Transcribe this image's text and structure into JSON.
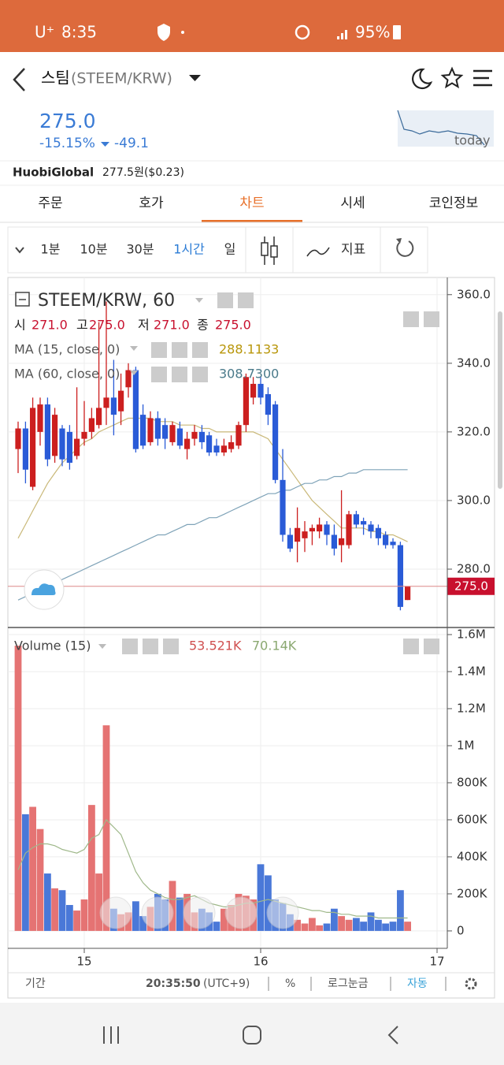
{
  "status": {
    "carrier": "U⁺",
    "time": "8:35",
    "battery": "95%"
  },
  "header": {
    "title": "스팀",
    "pair": "(STEEM/KRW)"
  },
  "price": {
    "last": "275.0",
    "change_pct": "-15.15%",
    "change": "-49.1",
    "spark_label": "today"
  },
  "exchange": {
    "name": "HuobiGlobal",
    "price": "277.5원($0.23)"
  },
  "tabs": [
    "주문",
    "호가",
    "차트",
    "시세",
    "코인정보"
  ],
  "active_tab": 2,
  "toolbar": {
    "intervals": [
      "1분",
      "10분",
      "30분",
      "1시간",
      "일"
    ],
    "active_interval": 3,
    "indicator": "지표"
  },
  "footer": {
    "period": "기간",
    "time": "20:35:50",
    "timezone": "(UTC+9)",
    "percent": "%",
    "log": "로그눈금",
    "auto": "자동"
  },
  "chart_data": [
    {
      "type": "candlestick",
      "title": "STEEM/KRW, 60",
      "last_ohlc": {
        "names": [
          "시",
          "고",
          "저",
          "종"
        ],
        "values": [
          271,
          275,
          271,
          275
        ],
        "value_labels": [
          "271.0",
          "275.0",
          "271.0",
          "275.0"
        ]
      },
      "up_color": "#cc1f1f",
      "down_color": "#2a5bd7",
      "x": [
        14.625,
        14.667,
        14.708,
        14.75,
        14.792,
        14.833,
        14.875,
        14.917,
        14.958,
        15.0,
        15.042,
        15.083,
        15.125,
        15.167,
        15.208,
        15.25,
        15.292,
        15.333,
        15.375,
        15.417,
        15.458,
        15.5,
        15.542,
        15.583,
        15.625,
        15.667,
        15.708,
        15.75,
        15.792,
        15.833,
        15.875,
        15.917,
        15.958,
        16.0,
        16.042,
        16.083,
        16.125,
        16.167,
        16.208,
        16.25,
        16.292,
        16.333,
        16.375,
        16.417,
        16.458,
        16.5,
        16.542,
        16.583,
        16.625,
        16.667,
        16.708,
        16.75,
        16.792,
        16.833
      ],
      "ohlc": [
        [
          315,
          323,
          308,
          321
        ],
        [
          321,
          323,
          305,
          309
        ],
        [
          304,
          330,
          303,
          327
        ],
        [
          320,
          330,
          316,
          328
        ],
        [
          328,
          330,
          310,
          312
        ],
        [
          313,
          327,
          311,
          325
        ],
        [
          321,
          322,
          310,
          312
        ],
        [
          320,
          322,
          309,
          311
        ],
        [
          313,
          333,
          312,
          318
        ],
        [
          318,
          329,
          316,
          320
        ],
        [
          320,
          327,
          318,
          324
        ],
        [
          322,
          352,
          321,
          327
        ],
        [
          327,
          358,
          322,
          330
        ],
        [
          330,
          341,
          319,
          325
        ],
        [
          326,
          337,
          322,
          332
        ],
        [
          333,
          340,
          330,
          338
        ],
        [
          338,
          339,
          314,
          315
        ],
        [
          325,
          328,
          315,
          316
        ],
        [
          317,
          326,
          316,
          324
        ],
        [
          324,
          326,
          316,
          318
        ],
        [
          322,
          324,
          315,
          318
        ],
        [
          317,
          323,
          316,
          322
        ],
        [
          321,
          323,
          315,
          316
        ],
        [
          315,
          320,
          312,
          318
        ],
        [
          318,
          322,
          316,
          320
        ],
        [
          320,
          322,
          315,
          317
        ],
        [
          319,
          320,
          313,
          314
        ],
        [
          316,
          318,
          313,
          314
        ],
        [
          314,
          318,
          313,
          316
        ],
        [
          315,
          319,
          314,
          317
        ],
        [
          316,
          323,
          315,
          322
        ],
        [
          322,
          337,
          320,
          336
        ],
        [
          330,
          336,
          328,
          334
        ],
        [
          334,
          336,
          328,
          330
        ],
        [
          331,
          333,
          322,
          325
        ],
        [
          328,
          329,
          305,
          306
        ],
        [
          306,
          315,
          288,
          290
        ],
        [
          290,
          292,
          285,
          286
        ],
        [
          288,
          298,
          282,
          292
        ],
        [
          289,
          294,
          285,
          291
        ],
        [
          291,
          293,
          287,
          292
        ],
        [
          291,
          295,
          289,
          293
        ],
        [
          293,
          294,
          287,
          290
        ],
        [
          290,
          293,
          284,
          286
        ],
        [
          287,
          303,
          282,
          289
        ],
        [
          287,
          297,
          286,
          296
        ],
        [
          296,
          297,
          292,
          293
        ],
        [
          294,
          295,
          290,
          293
        ],
        [
          293,
          294,
          289,
          291
        ],
        [
          292,
          293,
          287,
          289
        ],
        [
          290,
          291,
          286,
          287
        ],
        [
          288,
          289,
          286,
          287
        ],
        [
          287,
          288,
          268,
          269
        ],
        [
          271,
          275,
          271,
          275
        ]
      ],
      "series": [
        {
          "name": "MA (15, close, 0)",
          "color": "#c9b878",
          "current": 288.1133,
          "current_color": "#b8960a",
          "values": [
            289,
            293,
            297,
            301,
            305,
            308,
            311,
            313,
            315,
            317,
            318,
            320,
            321,
            322,
            323,
            324,
            324,
            324,
            324,
            323,
            323,
            323,
            322,
            322,
            322,
            321,
            321,
            320,
            320,
            320,
            320,
            320,
            320,
            319,
            318,
            315,
            312,
            309,
            306,
            303,
            300,
            298,
            296,
            294,
            292,
            292,
            292,
            292,
            291,
            291,
            290,
            290,
            289,
            288
          ]
        },
        {
          "name": "MA (60, close, 0)",
          "color": "#7fa3b8",
          "current": {
            "value": 308.73,
            "label": "308.7300"
          },
          "current_color": "#4a7a8a",
          "values": [
            271,
            272,
            273,
            274,
            275,
            276,
            277,
            278,
            279,
            280,
            281,
            282,
            283,
            284,
            285,
            286,
            287,
            288,
            289,
            290,
            290,
            291,
            292,
            293,
            293,
            294,
            295,
            295,
            296,
            297,
            298,
            299,
            300,
            301,
            302,
            302,
            303,
            303,
            304,
            305,
            305,
            306,
            306,
            307,
            307,
            308,
            308,
            309,
            309,
            309,
            309,
            309,
            309,
            309
          ]
        }
      ],
      "last_price": {
        "value": 275,
        "label": "275.0"
      },
      "xlim": [
        14.567,
        17.058
      ],
      "xticks": [
        15,
        16,
        17
      ],
      "ylim": [
        263,
        365
      ],
      "yticks": [
        {
          "value": 280,
          "label": "280.0"
        },
        {
          "value": 300,
          "label": "300.0"
        },
        {
          "value": 320,
          "label": "320.0"
        },
        {
          "value": 340,
          "label": "340.0"
        },
        {
          "value": 360,
          "label": "360.0"
        }
      ],
      "grid": true
    },
    {
      "type": "bar",
      "title": "Volume (15)",
      "up_color": "#e57373",
      "down_color": "#4a78d8",
      "current": {
        "value": 53521,
        "label": "53.521K"
      },
      "ma": {
        "color": "#9fb88a",
        "current": {
          "value": 70140,
          "label": "70.14K"
        },
        "values": [
          330000,
          420000,
          450000,
          470000,
          470000,
          460000,
          440000,
          430000,
          420000,
          440000,
          500000,
          520000,
          600000,
          560000,
          520000,
          420000,
          320000,
          260000,
          220000,
          200000,
          180000,
          170000,
          170000,
          180000,
          190000,
          170000,
          150000,
          140000,
          130000,
          130000,
          140000,
          150000,
          150000,
          160000,
          170000,
          160000,
          150000,
          140000,
          130000,
          120000,
          110000,
          110000,
          100000,
          100000,
          90000,
          90000,
          80000,
          80000,
          80000,
          70000,
          70000,
          70000,
          70000,
          70000
        ]
      },
      "values": [
        1540000,
        630000,
        670000,
        550000,
        310000,
        230000,
        220000,
        140000,
        110000,
        170000,
        680000,
        310000,
        1110000,
        120000,
        90000,
        100000,
        160000,
        80000,
        130000,
        200000,
        170000,
        270000,
        180000,
        200000,
        100000,
        120000,
        100000,
        50000,
        120000,
        140000,
        200000,
        190000,
        170000,
        360000,
        300000,
        170000,
        150000,
        90000,
        60000,
        40000,
        70000,
        30000,
        40000,
        120000,
        80000,
        60000,
        70000,
        50000,
        100000,
        60000,
        40000,
        50000,
        220000,
        50000
      ],
      "ylim": [
        -94000,
        1634000
      ],
      "yticks": [
        0,
        {
          "value": 200000,
          "label": "200K"
        },
        {
          "value": 400000,
          "label": "400K"
        },
        {
          "value": 600000,
          "label": "600K"
        },
        {
          "value": 800000,
          "label": "800K"
        },
        {
          "value": 1000000,
          "label": "1M"
        },
        {
          "value": 1200000,
          "label": "1.2M"
        },
        {
          "value": 1400000,
          "label": "1.4M"
        },
        {
          "value": 1600000,
          "label": "1.6M"
        }
      ],
      "grid": true
    }
  ]
}
